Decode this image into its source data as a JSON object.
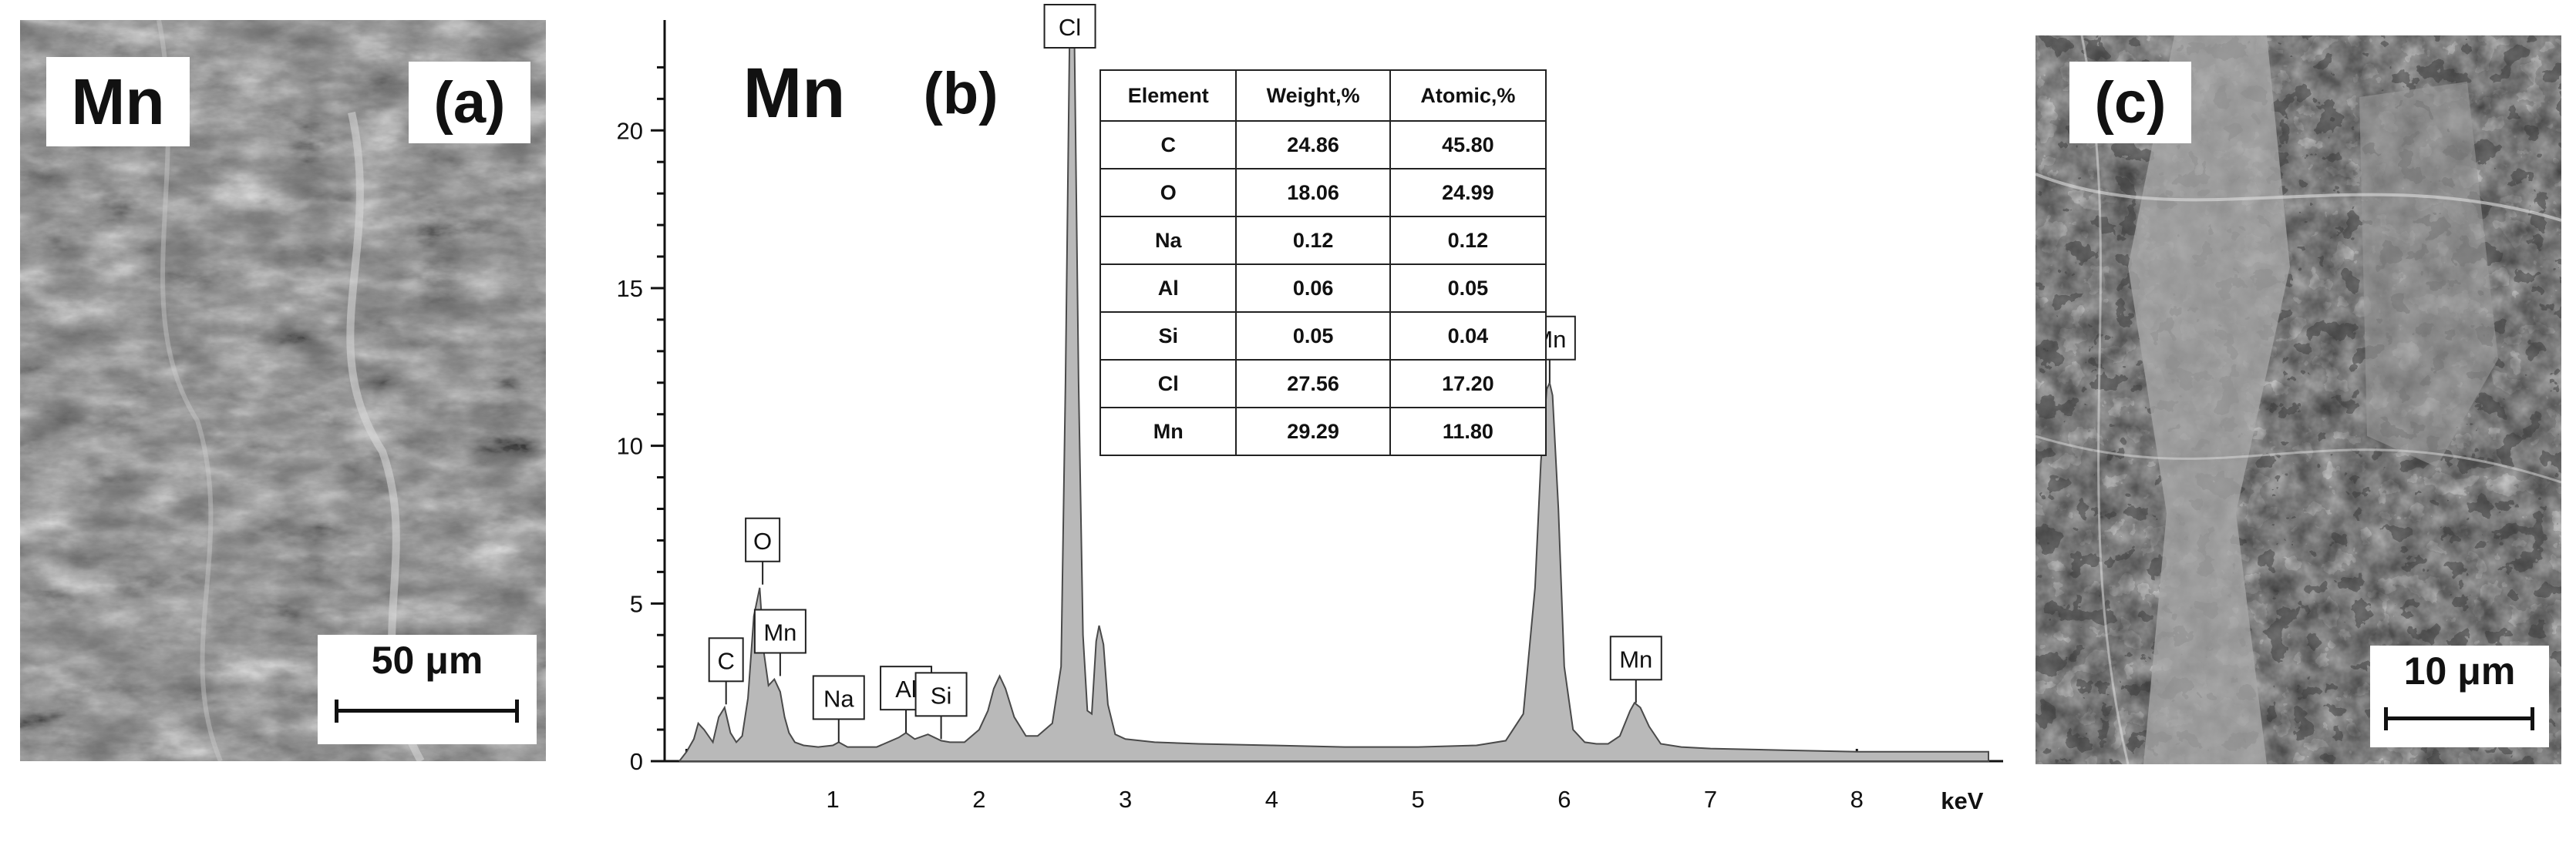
{
  "panel_a": {
    "element_label": "Mn",
    "panel_label": "(a)",
    "scale_bar": "50 μm"
  },
  "panel_c": {
    "panel_label": "(c)",
    "scale_bar": "10 μm"
  },
  "chart_data": {
    "type": "line",
    "title": "",
    "element_label": "Mn",
    "panel_label": "(b)",
    "xlabel": "keV",
    "ylabel": "",
    "xlim": [
      -0.15,
      9.0
    ],
    "ylim": [
      0,
      23.5
    ],
    "xticks": [
      1,
      2,
      3,
      4,
      5,
      6,
      7,
      8
    ],
    "yticks": [
      0,
      5,
      10,
      15,
      20
    ],
    "grid": false,
    "fill_color": "#b9b9b9",
    "spectrum": {
      "x": [
        -0.05,
        0.0,
        0.05,
        0.08,
        0.12,
        0.18,
        0.22,
        0.26,
        0.3,
        0.34,
        0.38,
        0.42,
        0.46,
        0.5,
        0.53,
        0.56,
        0.6,
        0.64,
        0.67,
        0.7,
        0.74,
        0.8,
        0.9,
        1.0,
        1.04,
        1.1,
        1.3,
        1.45,
        1.5,
        1.56,
        1.65,
        1.74,
        1.8,
        1.9,
        2.0,
        2.06,
        2.1,
        2.14,
        2.18,
        2.24,
        2.32,
        2.4,
        2.5,
        2.56,
        2.59,
        2.62,
        2.65,
        2.68,
        2.71,
        2.74,
        2.77,
        2.8,
        2.82,
        2.85,
        2.88,
        2.93,
        3.0,
        3.2,
        3.5,
        4.0,
        4.5,
        5.0,
        5.4,
        5.6,
        5.72,
        5.8,
        5.84,
        5.88,
        5.9,
        5.92,
        5.96,
        6.0,
        6.06,
        6.14,
        6.22,
        6.3,
        6.38,
        6.45,
        6.48,
        6.52,
        6.58,
        6.66,
        6.8,
        7.0,
        7.5,
        8.0,
        8.5,
        8.9
      ],
      "y": [
        0.0,
        0.3,
        0.7,
        1.2,
        1.0,
        0.6,
        1.4,
        1.7,
        0.9,
        0.6,
        0.8,
        2.0,
        4.6,
        5.5,
        3.4,
        2.4,
        2.6,
        2.2,
        1.4,
        0.9,
        0.6,
        0.5,
        0.45,
        0.5,
        0.6,
        0.45,
        0.45,
        0.75,
        0.9,
        0.7,
        0.85,
        0.65,
        0.6,
        0.6,
        1.0,
        1.6,
        2.3,
        2.7,
        2.3,
        1.4,
        0.8,
        0.8,
        1.2,
        3.0,
        12.0,
        23.5,
        23.5,
        12.0,
        4.0,
        1.6,
        1.5,
        3.8,
        4.3,
        3.7,
        1.8,
        0.85,
        0.7,
        0.6,
        0.55,
        0.5,
        0.45,
        0.45,
        0.5,
        0.65,
        1.5,
        5.5,
        9.5,
        11.8,
        12.0,
        11.6,
        8.0,
        3.0,
        1.0,
        0.6,
        0.55,
        0.55,
        0.8,
        1.6,
        1.85,
        1.7,
        1.1,
        0.55,
        0.45,
        0.4,
        0.35,
        0.3,
        0.3,
        0.3
      ]
    },
    "peak_labels": [
      {
        "text": "C",
        "x": 0.27,
        "y": 1.8
      },
      {
        "text": "O",
        "x": 0.52,
        "y": 5.6
      },
      {
        "text": "Mn",
        "x": 0.64,
        "y": 2.7
      },
      {
        "text": "Na",
        "x": 1.04,
        "y": 0.6
      },
      {
        "text": "Al",
        "x": 1.5,
        "y": 0.9
      },
      {
        "text": "Si",
        "x": 1.74,
        "y": 0.7
      },
      {
        "text": "Cl",
        "x": 2.62,
        "y": 23.5
      },
      {
        "text": "Mn",
        "x": 5.9,
        "y": 12.0
      },
      {
        "text": "Mn",
        "x": 6.49,
        "y": 1.85
      }
    ],
    "table": {
      "headers": [
        "Element",
        "Weight,%",
        "Atomic,%"
      ],
      "rows": [
        [
          "C",
          "24.86",
          "45.80"
        ],
        [
          "O",
          "18.06",
          "24.99"
        ],
        [
          "Na",
          "0.12",
          "0.12"
        ],
        [
          "Al",
          "0.06",
          "0.05"
        ],
        [
          "Si",
          "0.05",
          "0.04"
        ],
        [
          "Cl",
          "27.56",
          "17.20"
        ],
        [
          "Mn",
          "29.29",
          "11.80"
        ]
      ]
    }
  }
}
